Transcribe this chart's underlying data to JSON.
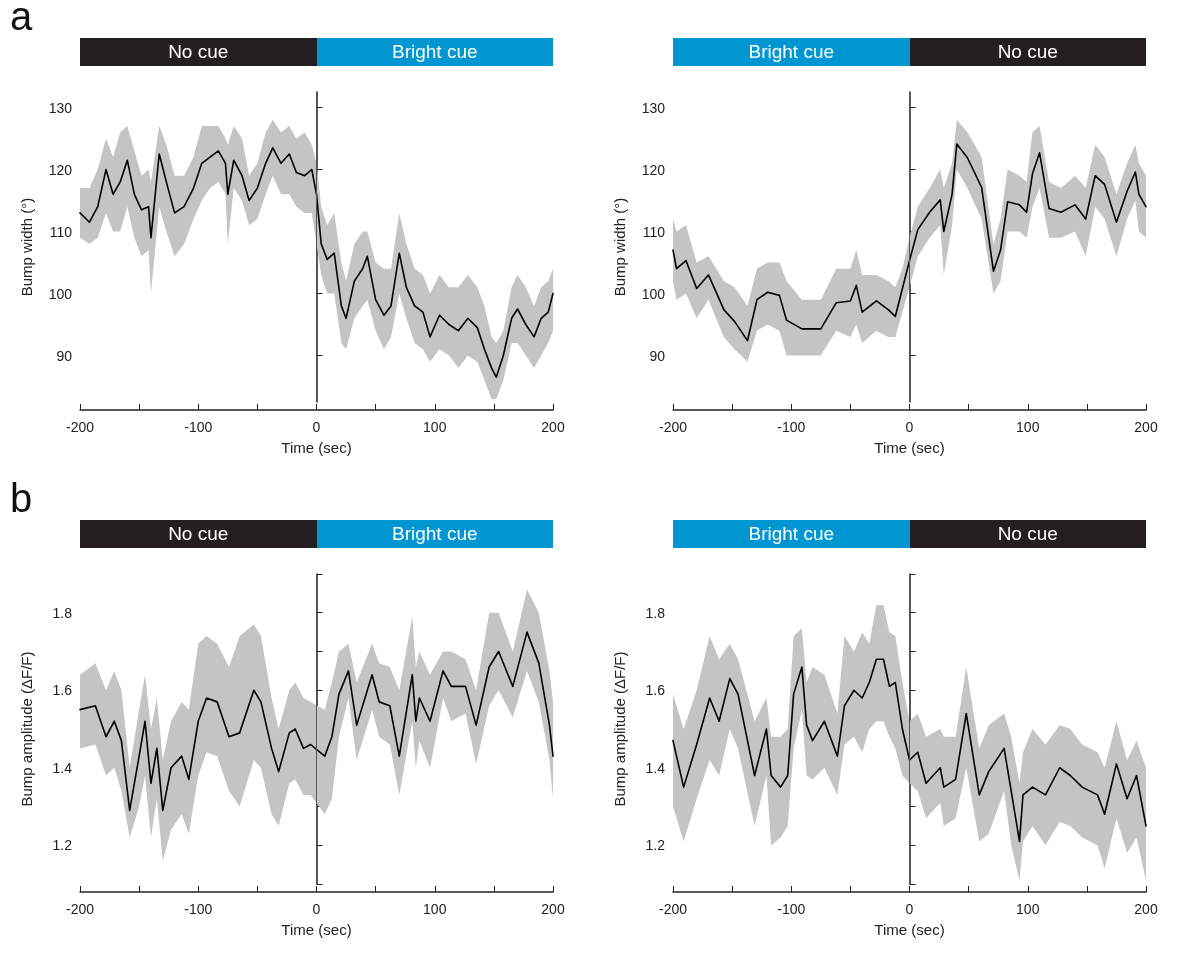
{
  "chart_data": [
    {
      "type": "other",
      "annotations": [
        "a"
      ],
      "categories": [
        "No cue",
        "Bright cue"
      ],
      "colors": [
        "#231f20",
        "#0096d2"
      ]
    },
    {
      "type": "other",
      "categories": [
        "Bright cue",
        "No cue"
      ],
      "colors": [
        "#0096d2",
        "#231f20"
      ]
    },
    {
      "type": "line",
      "xlabel": "Time (sec)",
      "ylabel": "Bump width (°)",
      "xlim": [
        -200,
        200
      ],
      "xticks": [
        -200,
        {
          "value": -150,
          "label": null
        },
        -100,
        {
          "value": -50,
          "label": null
        },
        0,
        {
          "value": 50,
          "label": null
        },
        100,
        {
          "value": 150,
          "label": null
        },
        200
      ],
      "ylim": [
        82.5,
        132.5
      ],
      "yticks": [
        90,
        100,
        110,
        120,
        130
      ],
      "ref_lines": [
        {
          "axis": "x",
          "value": 0,
          "color": "#555555"
        }
      ],
      "x": [
        -200,
        -192,
        -185,
        -178,
        -172,
        -166,
        -160,
        -154,
        -148,
        -142,
        -140,
        -133,
        -127,
        -120,
        -112,
        -104,
        -97,
        -90,
        -83,
        -77,
        -75,
        -70,
        -63,
        -57,
        -50,
        -43,
        -37,
        -30,
        -23,
        -17,
        -10,
        -4,
        0,
        4,
        9,
        15,
        21,
        25,
        32,
        39,
        43,
        50,
        57,
        63,
        70,
        76,
        83,
        90,
        96,
        104,
        112,
        120,
        128,
        136,
        142,
        148,
        152,
        158,
        165,
        170,
        177,
        184,
        190,
        196,
        200
      ],
      "series": [
        {
          "color": "#000000",
          "values": [
            113,
            111.5,
            114,
            120,
            116,
            118,
            121.5,
            116,
            113.5,
            114,
            109,
            122.5,
            118,
            113,
            114,
            117,
            121,
            122,
            123,
            121,
            116,
            121.5,
            119,
            115,
            117,
            121,
            123.5,
            121,
            122.5,
            119.5,
            119,
            120,
            116,
            108,
            105.5,
            106.5,
            98,
            96,
            102,
            104,
            106,
            99,
            96.5,
            98,
            106.5,
            101,
            98,
            97,
            93,
            96.5,
            95,
            94,
            96,
            94.5,
            91,
            88,
            86.5,
            90,
            96,
            97.5,
            95,
            93,
            96,
            97,
            100
          ],
          "upper": [
            117,
            117,
            120,
            125,
            122,
            126,
            127,
            123,
            119,
            120,
            118,
            127,
            124,
            119,
            119,
            122,
            127,
            127,
            127,
            125,
            124,
            127,
            125,
            119,
            121,
            126,
            128,
            126,
            127,
            125,
            126,
            124,
            121,
            114,
            111,
            113,
            105,
            102,
            108,
            110,
            110,
            105,
            104,
            104,
            113,
            108,
            104,
            103,
            100,
            103,
            101,
            101,
            103,
            101,
            98,
            93,
            92,
            94,
            101,
            103,
            101,
            98,
            101,
            102,
            104
          ],
          "lower": [
            109,
            108,
            109,
            113,
            110,
            110,
            114,
            109,
            106,
            107,
            100,
            114,
            110,
            106,
            108,
            112,
            115,
            117,
            118,
            116,
            108,
            117,
            115,
            111,
            112,
            116,
            119,
            116,
            116,
            114,
            113,
            113,
            108,
            103,
            100,
            100,
            92,
            91,
            96,
            98,
            99,
            94,
            91,
            93,
            100,
            96,
            92,
            91,
            89,
            91,
            90,
            88,
            90,
            89,
            86,
            83,
            83,
            86,
            92,
            92,
            90,
            88,
            90,
            92,
            94
          ]
        }
      ]
    },
    {
      "type": "line",
      "xlabel": "Time (sec)",
      "ylabel": "Bump width (°)",
      "xlim": [
        -200,
        200
      ],
      "xticks": [
        -200,
        {
          "value": -150,
          "label": null
        },
        -100,
        {
          "value": -50,
          "label": null
        },
        0,
        {
          "value": 50,
          "label": null
        },
        100,
        {
          "value": 150,
          "label": null
        },
        200
      ],
      "ylim": [
        82.5,
        132.5
      ],
      "yticks": [
        90,
        100,
        110,
        120,
        130
      ],
      "ref_lines": [
        {
          "axis": "x",
          "value": 0,
          "color": "#555555"
        }
      ],
      "x": [
        -200,
        -197,
        -189,
        -180,
        -170,
        -157,
        -148,
        -137,
        -129,
        -120,
        -110,
        -104,
        -91,
        -75,
        -62,
        -50,
        -45,
        -40,
        -28,
        -18,
        -12,
        -6,
        0,
        7,
        17,
        26,
        29,
        36,
        40,
        49,
        61,
        71,
        77,
        83,
        93,
        99,
        104,
        110,
        118,
        128,
        140,
        149,
        157,
        165,
        175,
        184,
        191,
        194,
        200
      ],
      "series": [
        {
          "color": "#000000",
          "values": [
            107,
            104,
            105.3,
            100.8,
            103,
            97.4,
            95.5,
            92.4,
            99,
            100.2,
            99.7,
            95.7,
            94.3,
            94.3,
            98.5,
            98.8,
            101.3,
            97,
            98.8,
            97.4,
            96.3,
            100.8,
            105.3,
            110.3,
            113.1,
            115.1,
            110,
            116,
            124.1,
            121.9,
            117.1,
            103.6,
            107,
            114.8,
            114.3,
            113.1,
            119.3,
            122.7,
            113.7,
            113.1,
            114.3,
            112,
            119,
            117.6,
            111.5,
            116.5,
            119.6,
            116,
            114
          ],
          "upper": [
            112,
            110,
            111,
            105,
            106,
            102,
            101,
            98,
            104,
            105,
            105,
            102,
            99,
            99,
            104,
            104,
            107,
            103,
            103,
            102,
            101,
            104,
            109,
            114,
            117,
            120,
            117,
            121,
            128,
            126,
            122,
            108,
            112,
            120,
            119,
            118,
            126,
            127,
            118,
            117,
            119,
            117,
            124,
            122,
            116,
            121,
            124,
            121,
            119
          ],
          "lower": [
            102,
            99,
            100,
            96,
            99,
            93,
            91,
            89,
            94,
            95,
            94,
            90,
            90,
            90,
            94,
            93,
            95,
            92,
            94,
            93,
            93,
            97,
            101,
            106,
            109,
            111,
            103,
            111,
            120,
            117,
            112,
            100,
            102,
            110,
            110,
            109,
            114,
            117,
            109,
            109,
            110,
            106,
            114,
            112,
            106,
            112,
            115,
            110,
            109
          ]
        }
      ]
    },
    {
      "type": "other",
      "annotations": [
        "b"
      ],
      "categories": [
        "No cue",
        "Bright cue"
      ],
      "colors": [
        "#231f20",
        "#0096d2"
      ]
    },
    {
      "type": "other",
      "categories": [
        "Bright cue",
        "No cue"
      ],
      "colors": [
        "#0096d2",
        "#231f20"
      ]
    },
    {
      "type": "line",
      "xlabel": "Time (sec)",
      "ylabel": "Bump amplitude (ΔF/F)",
      "xlim": [
        -200,
        200
      ],
      "xticks": [
        -200,
        {
          "value": -150,
          "label": null
        },
        -100,
        {
          "value": -50,
          "label": null
        },
        0,
        {
          "value": 50,
          "label": null
        },
        100,
        {
          "value": 150,
          "label": null
        },
        200
      ],
      "ylim": [
        1.1,
        1.9
      ],
      "yticks": [
        {
          "value": 1.1,
          "label": null
        },
        1.2,
        {
          "value": 1.3,
          "label": null
        },
        1.4,
        {
          "value": 1.5,
          "label": null
        },
        1.6,
        {
          "value": 1.7,
          "label": null
        },
        1.8,
        {
          "value": 1.9,
          "label": null
        }
      ],
      "ref_lines": [
        {
          "axis": "x",
          "value": 0,
          "color": "#555555"
        }
      ],
      "x": [
        -200,
        -187,
        -178,
        -171,
        -165,
        -158,
        -150,
        -145,
        -140,
        -135,
        -130,
        -123,
        -114,
        -108,
        -100,
        -93,
        -84,
        -74,
        -65,
        -53,
        -47,
        -38,
        -32,
        -23,
        -18,
        -11,
        -5,
        7,
        13,
        19,
        27,
        34,
        47,
        53,
        62,
        70,
        81,
        84,
        87,
        96,
        107,
        114,
        126,
        135,
        146,
        154,
        166,
        178,
        188,
        197,
        200
      ],
      "series": [
        {
          "color": "#000000",
          "values": [
            1.55,
            1.56,
            1.48,
            1.52,
            1.47,
            1.29,
            1.43,
            1.52,
            1.36,
            1.45,
            1.29,
            1.4,
            1.43,
            1.37,
            1.52,
            1.58,
            1.57,
            1.48,
            1.49,
            1.6,
            1.57,
            1.45,
            1.39,
            1.49,
            1.5,
            1.45,
            1.46,
            1.43,
            1.48,
            1.59,
            1.65,
            1.51,
            1.64,
            1.57,
            1.56,
            1.43,
            1.64,
            1.52,
            1.58,
            1.52,
            1.65,
            1.61,
            1.61,
            1.51,
            1.66,
            1.7,
            1.61,
            1.75,
            1.67,
            1.51,
            1.43
          ],
          "upper": [
            1.64,
            1.67,
            1.6,
            1.65,
            1.6,
            1.4,
            1.55,
            1.64,
            1.5,
            1.58,
            1.42,
            1.52,
            1.57,
            1.55,
            1.72,
            1.74,
            1.72,
            1.66,
            1.74,
            1.77,
            1.74,
            1.58,
            1.5,
            1.6,
            1.62,
            1.58,
            1.57,
            1.55,
            1.62,
            1.7,
            1.72,
            1.62,
            1.72,
            1.67,
            1.66,
            1.6,
            1.79,
            1.66,
            1.7,
            1.64,
            1.7,
            1.7,
            1.68,
            1.6,
            1.8,
            1.8,
            1.7,
            1.86,
            1.8,
            1.65,
            1.57
          ],
          "lower": [
            1.45,
            1.46,
            1.38,
            1.4,
            1.34,
            1.22,
            1.3,
            1.38,
            1.22,
            1.32,
            1.16,
            1.24,
            1.28,
            1.23,
            1.38,
            1.44,
            1.43,
            1.34,
            1.3,
            1.42,
            1.4,
            1.28,
            1.25,
            1.36,
            1.37,
            1.33,
            1.33,
            1.28,
            1.32,
            1.48,
            1.58,
            1.42,
            1.55,
            1.48,
            1.46,
            1.33,
            1.52,
            1.4,
            1.47,
            1.4,
            1.58,
            1.52,
            1.54,
            1.41,
            1.56,
            1.6,
            1.53,
            1.65,
            1.57,
            1.42,
            1.32
          ]
        }
      ]
    },
    {
      "type": "line",
      "xlabel": "Time (sec)",
      "ylabel": "Bump amplitude (ΔF/F)",
      "xlim": [
        -200,
        200
      ],
      "xticks": [
        -200,
        {
          "value": -150,
          "label": null
        },
        -100,
        {
          "value": -50,
          "label": null
        },
        0,
        {
          "value": 50,
          "label": null
        },
        100,
        {
          "value": 150,
          "label": null
        },
        200
      ],
      "ylim": [
        1.1,
        1.9
      ],
      "yticks": [
        {
          "value": 1.1,
          "label": null
        },
        1.2,
        {
          "value": 1.3,
          "label": null
        },
        1.4,
        {
          "value": 1.5,
          "label": null
        },
        1.6,
        {
          "value": 1.7,
          "label": null
        },
        1.8,
        {
          "value": 1.9,
          "label": null
        }
      ],
      "ref_lines": [
        {
          "axis": "x",
          "value": 0,
          "color": "#555555"
        }
      ],
      "x": [
        -200,
        -191,
        -180,
        -169,
        -161,
        -152,
        -145,
        -131,
        -121,
        -117,
        -109,
        -103,
        -98,
        -91,
        -87,
        -82,
        -72,
        -61,
        -55,
        -47,
        -40,
        -34,
        -28,
        -22,
        -17,
        -12,
        -6,
        0,
        7,
        14,
        26,
        29,
        39,
        48,
        59,
        67,
        80,
        86,
        93,
        96,
        104,
        115,
        127,
        136,
        146,
        159,
        165,
        175,
        184,
        192,
        200
      ],
      "series": [
        {
          "color": "#000000",
          "values": [
            1.47,
            1.35,
            1.46,
            1.58,
            1.52,
            1.63,
            1.59,
            1.38,
            1.5,
            1.38,
            1.35,
            1.38,
            1.59,
            1.66,
            1.51,
            1.47,
            1.52,
            1.43,
            1.56,
            1.6,
            1.58,
            1.62,
            1.68,
            1.68,
            1.61,
            1.62,
            1.5,
            1.42,
            1.44,
            1.36,
            1.4,
            1.35,
            1.37,
            1.54,
            1.33,
            1.39,
            1.45,
            1.34,
            1.21,
            1.33,
            1.35,
            1.33,
            1.4,
            1.38,
            1.35,
            1.33,
            1.28,
            1.41,
            1.32,
            1.38,
            1.25
          ],
          "upper": [
            1.59,
            1.5,
            1.6,
            1.74,
            1.68,
            1.72,
            1.68,
            1.52,
            1.58,
            1.48,
            1.48,
            1.5,
            1.74,
            1.76,
            1.62,
            1.66,
            1.64,
            1.54,
            1.74,
            1.7,
            1.75,
            1.72,
            1.82,
            1.82,
            1.75,
            1.74,
            1.62,
            1.52,
            1.54,
            1.48,
            1.5,
            1.48,
            1.48,
            1.66,
            1.45,
            1.51,
            1.54,
            1.48,
            1.36,
            1.44,
            1.5,
            1.46,
            1.51,
            1.5,
            1.46,
            1.44,
            1.4,
            1.52,
            1.42,
            1.47,
            1.4
          ],
          "lower": [
            1.3,
            1.21,
            1.32,
            1.42,
            1.38,
            1.5,
            1.45,
            1.25,
            1.38,
            1.2,
            1.22,
            1.25,
            1.45,
            1.55,
            1.38,
            1.37,
            1.4,
            1.33,
            1.46,
            1.48,
            1.44,
            1.5,
            1.52,
            1.52,
            1.48,
            1.45,
            1.38,
            1.36,
            1.34,
            1.27,
            1.31,
            1.25,
            1.27,
            1.4,
            1.21,
            1.23,
            1.34,
            1.2,
            1.11,
            1.21,
            1.25,
            1.2,
            1.26,
            1.25,
            1.22,
            1.2,
            1.14,
            1.27,
            1.18,
            1.22,
            1.11
          ]
        }
      ]
    }
  ]
}
